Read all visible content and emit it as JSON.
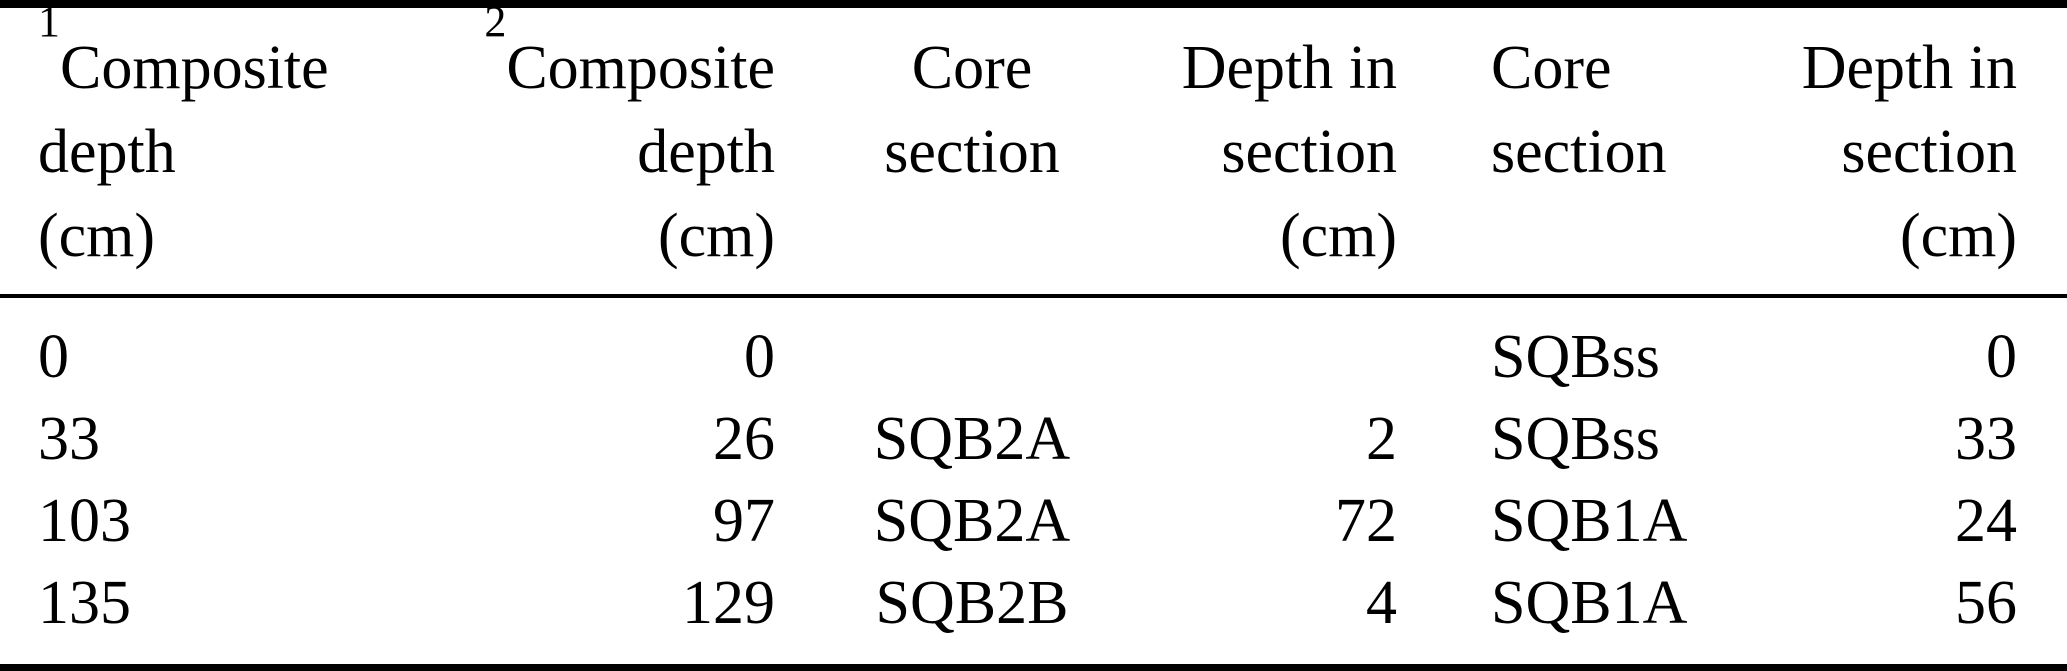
{
  "document": {
    "kind": "paper-table",
    "background_color": "#ffffff",
    "text_color": "#000000",
    "rule_color": "#000000"
  },
  "table": {
    "columns": [
      {
        "superscript": "1",
        "lines": [
          "Composite",
          "depth",
          "(cm)"
        ],
        "label": "1Composite depth (cm)",
        "align": "left"
      },
      {
        "superscript": "2",
        "lines": [
          "Composite",
          "depth",
          "(cm)"
        ],
        "label": "2Composite depth (cm)",
        "align": "right"
      },
      {
        "lines": [
          "Core",
          "section"
        ],
        "label": "Core section",
        "align": "center"
      },
      {
        "lines": [
          "Depth in",
          "section",
          "(cm)"
        ],
        "label": "Depth in section (cm)",
        "align": "right"
      },
      {
        "lines": [
          "Core",
          "section"
        ],
        "label": "Core section",
        "align": "left"
      },
      {
        "lines": [
          "Depth in",
          "section",
          "(cm)"
        ],
        "label": "Depth in section (cm)",
        "align": "right"
      }
    ],
    "rows": [
      [
        "0",
        "0",
        "",
        "",
        "SQBss",
        "0"
      ],
      [
        "33",
        "26",
        "SQB2A",
        "2",
        "SQBss",
        "33"
      ],
      [
        "103",
        "97",
        "SQB2A",
        "72",
        "SQB1A",
        "24"
      ],
      [
        "135",
        "129",
        "SQB2B",
        "4",
        "SQB1A",
        "56"
      ]
    ]
  }
}
